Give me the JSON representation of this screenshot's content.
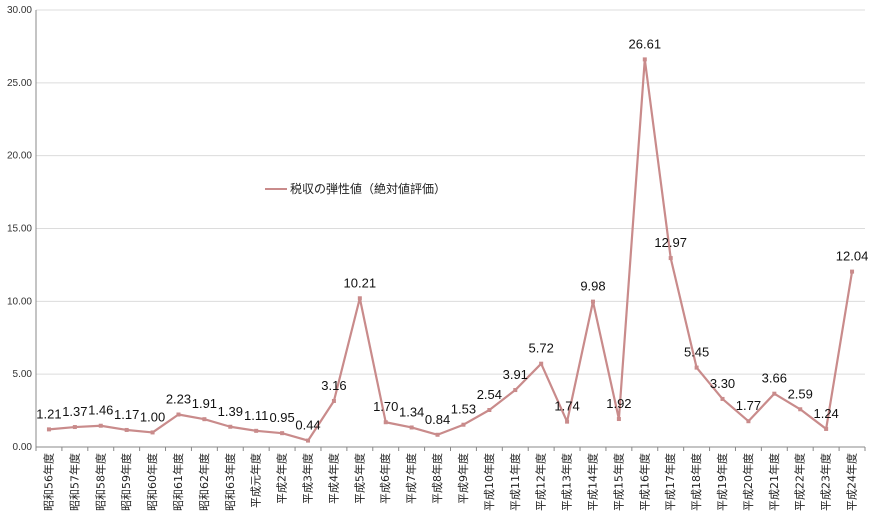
{
  "chart_data": {
    "type": "line",
    "categories": [
      "昭和56年度",
      "昭和57年度",
      "昭和58年度",
      "昭和59年度",
      "昭和60年度",
      "昭和61年度",
      "昭和62年度",
      "昭和63年度",
      "平成元年度",
      "平成2年度",
      "平成3年度",
      "平成4年度",
      "平成5年度",
      "平成6年度",
      "平成7年度",
      "平成8年度",
      "平成9年度",
      "平成10年度",
      "平成11年度",
      "平成12年度",
      "平成13年度",
      "平成14年度",
      "平成15年度",
      "平成16年度",
      "平成17年度",
      "平成18年度",
      "平成19年度",
      "平成20年度",
      "平成21年度",
      "平成22年度",
      "平成23年度",
      "平成24年度"
    ],
    "series": [
      {
        "name": "税収の弾性値（絶対値評価）",
        "values": [
          1.21,
          1.37,
          1.46,
          1.17,
          1.0,
          2.23,
          1.91,
          1.39,
          1.11,
          0.95,
          0.44,
          3.16,
          10.21,
          1.7,
          1.34,
          0.84,
          1.53,
          2.54,
          3.91,
          5.72,
          1.74,
          9.98,
          1.92,
          26.61,
          12.97,
          5.45,
          3.3,
          1.77,
          3.66,
          2.59,
          1.24,
          12.04
        ],
        "labels": [
          "1.21",
          "1.37",
          "1.46",
          "1.17",
          "1.00",
          "2.23",
          "1.91",
          "1.39",
          "1.11",
          "0.95",
          "0.44",
          "3.16",
          "10.21",
          "1.70",
          "1.34",
          "0.84",
          "1.53",
          "2.54",
          "3.91",
          "5.72",
          "1.74",
          "9.98",
          "1.92",
          "26.61",
          "12.97",
          "5.45",
          "3.30",
          "1.77",
          "3.66",
          "2.59",
          "1.24",
          "12.04"
        ],
        "color": "#c98b8b"
      }
    ],
    "ylim": [
      0,
      30
    ],
    "yticks": [
      "0.00",
      "5.00",
      "10.00",
      "15.00",
      "20.00",
      "25.00",
      "30.00"
    ],
    "grid": true,
    "legend_position": "top-center",
    "title": "",
    "xlabel": "",
    "ylabel": ""
  }
}
